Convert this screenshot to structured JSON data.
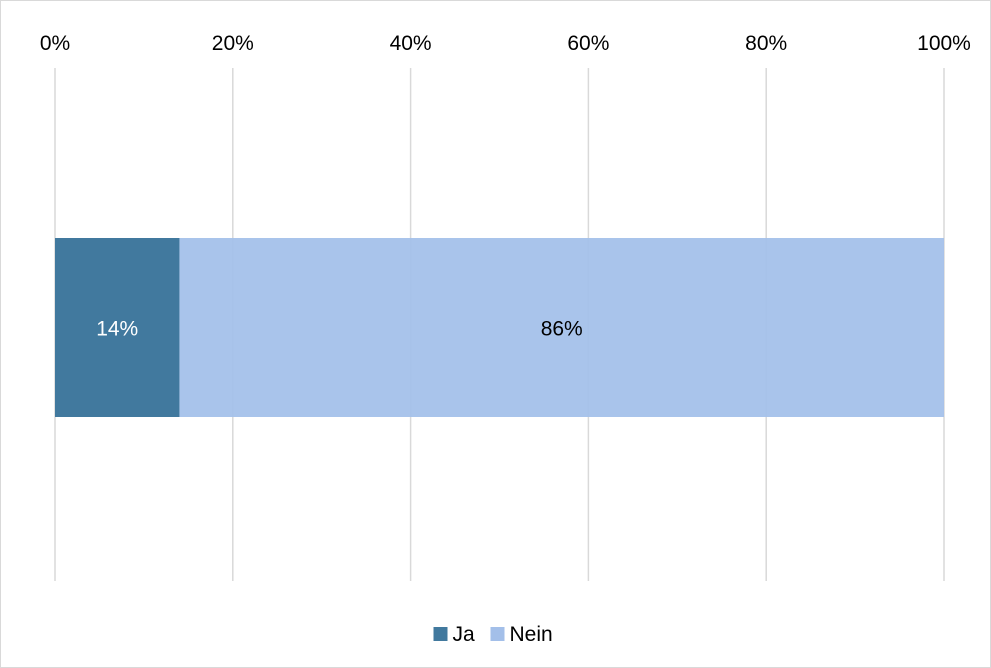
{
  "chart_data": {
    "type": "bar",
    "orientation": "horizontal",
    "stacked": "percent",
    "categories": [
      ""
    ],
    "series": [
      {
        "name": "Ja",
        "values": [
          14
        ],
        "label": "14%",
        "color": "#41799e",
        "label_color": "#ffffff"
      },
      {
        "name": "Nein",
        "values": [
          86
        ],
        "label": "86%",
        "color": "#a3bfe9",
        "label_color": "#000000"
      }
    ],
    "title": "",
    "xlabel": "",
    "ylabel": "",
    "xlim": [
      0,
      100
    ],
    "x_ticks": [
      "0%",
      "20%",
      "40%",
      "60%",
      "80%",
      "100%"
    ],
    "x_axis_position": "top",
    "grid": true,
    "gridline_color": "#d9d9d9",
    "legend_position": "bottom"
  }
}
